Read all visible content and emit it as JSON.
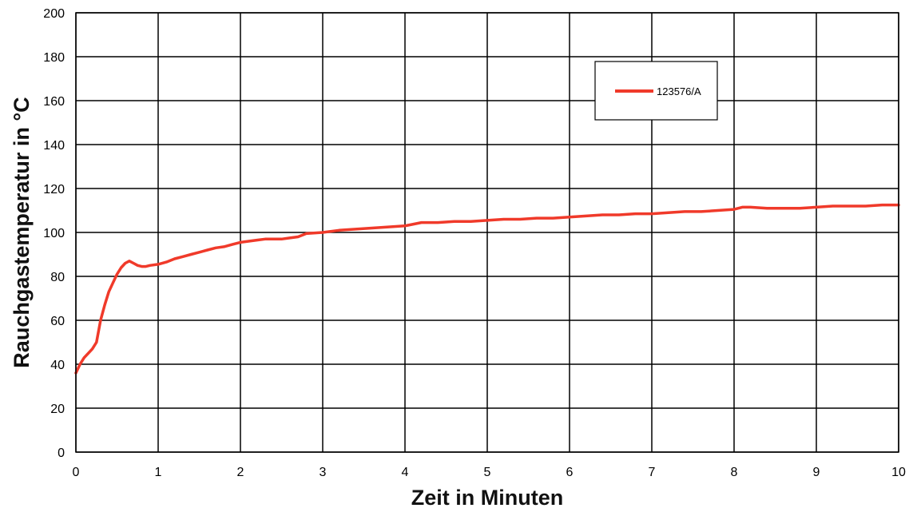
{
  "chart_data": {
    "type": "line",
    "xlabel": "Zeit in Minuten",
    "ylabel": "Rauchgastemperatur in °C",
    "xlim": [
      0,
      10
    ],
    "ylim": [
      0,
      200
    ],
    "x_ticks": [
      "0",
      "1",
      "2",
      "3",
      "4",
      "5",
      "6",
      "7",
      "8",
      "9",
      "10"
    ],
    "y_ticks": [
      "0",
      "20",
      "40",
      "60",
      "80",
      "100",
      "120",
      "140",
      "160",
      "180",
      "200"
    ],
    "grid": true,
    "legend_position": "top-right",
    "series": [
      {
        "name": "123576/A",
        "color": "#f03a2a",
        "points": [
          [
            0,
            36
          ],
          [
            0.05,
            40
          ],
          [
            0.1,
            43
          ],
          [
            0.15,
            45
          ],
          [
            0.2,
            47
          ],
          [
            0.25,
            50
          ],
          [
            0.3,
            60
          ],
          [
            0.35,
            67
          ],
          [
            0.4,
            73
          ],
          [
            0.45,
            77
          ],
          [
            0.5,
            81
          ],
          [
            0.55,
            84
          ],
          [
            0.6,
            86
          ],
          [
            0.65,
            87
          ],
          [
            0.7,
            86
          ],
          [
            0.75,
            85
          ],
          [
            0.8,
            84.5
          ],
          [
            0.85,
            84.5
          ],
          [
            0.9,
            85
          ],
          [
            1.0,
            85.5
          ],
          [
            1.1,
            86.5
          ],
          [
            1.2,
            88
          ],
          [
            1.3,
            89
          ],
          [
            1.4,
            90
          ],
          [
            1.5,
            91
          ],
          [
            1.6,
            92
          ],
          [
            1.7,
            93
          ],
          [
            1.8,
            93.5
          ],
          [
            1.9,
            94.5
          ],
          [
            2.0,
            95.5
          ],
          [
            2.1,
            96
          ],
          [
            2.2,
            96.5
          ],
          [
            2.3,
            97
          ],
          [
            2.4,
            97
          ],
          [
            2.5,
            97
          ],
          [
            2.6,
            97.5
          ],
          [
            2.7,
            98
          ],
          [
            2.8,
            99.5
          ],
          [
            3.0,
            100
          ],
          [
            3.2,
            101
          ],
          [
            3.4,
            101.5
          ],
          [
            3.6,
            102
          ],
          [
            3.8,
            102.5
          ],
          [
            4.0,
            103
          ],
          [
            4.2,
            104.5
          ],
          [
            4.4,
            104.5
          ],
          [
            4.6,
            105
          ],
          [
            4.8,
            105
          ],
          [
            5.0,
            105.5
          ],
          [
            5.2,
            106
          ],
          [
            5.4,
            106
          ],
          [
            5.6,
            106.5
          ],
          [
            5.8,
            106.5
          ],
          [
            6.0,
            107
          ],
          [
            6.2,
            107.5
          ],
          [
            6.4,
            108
          ],
          [
            6.6,
            108
          ],
          [
            6.8,
            108.5
          ],
          [
            7.0,
            108.5
          ],
          [
            7.2,
            109
          ],
          [
            7.4,
            109.5
          ],
          [
            7.6,
            109.5
          ],
          [
            7.8,
            110
          ],
          [
            8.0,
            110.5
          ],
          [
            8.1,
            111.5
          ],
          [
            8.2,
            111.5
          ],
          [
            8.4,
            111
          ],
          [
            8.6,
            111
          ],
          [
            8.8,
            111
          ],
          [
            9.0,
            111.5
          ],
          [
            9.2,
            112
          ],
          [
            9.4,
            112
          ],
          [
            9.6,
            112
          ],
          [
            9.8,
            112.5
          ],
          [
            10.0,
            112.5
          ]
        ]
      }
    ]
  }
}
